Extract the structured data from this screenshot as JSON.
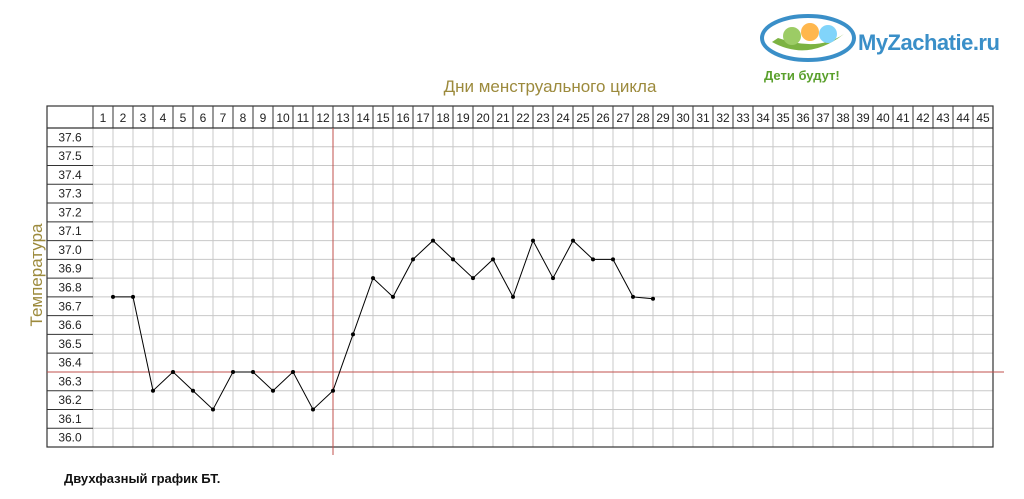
{
  "chart_data": {
    "type": "line",
    "title": "Дни менструального цикла",
    "xlabel": "Дни менструального цикла",
    "ylabel": "Температура",
    "caption": "Двухфазный график БТ.",
    "x_ticks": [
      1,
      2,
      3,
      4,
      5,
      6,
      7,
      8,
      9,
      10,
      11,
      12,
      13,
      14,
      15,
      16,
      17,
      18,
      19,
      20,
      21,
      22,
      23,
      24,
      25,
      26,
      27,
      28,
      29,
      30,
      31,
      32,
      33,
      34,
      35,
      36,
      37,
      38,
      39,
      40,
      41,
      42,
      43,
      44,
      45
    ],
    "y_ticks": [
      "37.6",
      "37.5",
      "37.4",
      "37.3",
      "37.2",
      "37.1",
      "37.0",
      "36.9",
      "36.8",
      "36.7",
      "36.6",
      "36.5",
      "36.4",
      "36.3",
      "36.2",
      "36.1",
      "36.0"
    ],
    "ylim": [
      36.0,
      37.6
    ],
    "xlim": [
      1,
      45
    ],
    "grid": true,
    "series": [
      {
        "x": [
          1,
          2,
          3,
          4,
          5,
          6,
          7,
          8,
          9,
          10,
          11,
          12,
          13,
          14,
          15,
          16,
          17,
          18,
          19,
          20,
          21,
          22,
          23,
          24,
          25,
          26,
          27,
          28
        ],
        "values": [
          36.75,
          36.75,
          36.25,
          36.35,
          36.25,
          36.15,
          36.35,
          36.35,
          36.25,
          36.35,
          36.15,
          36.25,
          36.55,
          36.85,
          36.75,
          36.95,
          37.05,
          36.95,
          36.85,
          36.95,
          36.75,
          37.05,
          36.85,
          37.05,
          36.95,
          36.95,
          36.75,
          36.74
        ],
        "color": "#000000"
      }
    ],
    "reference_lines": {
      "horizontal_value": 36.35,
      "vertical_after_day": 12,
      "color": "#c0504d"
    }
  },
  "logo": {
    "text": "MyZachatie.ru",
    "slogan": "Дети будут!",
    "color": "#3a8fc8",
    "slogan_color": "#5aa02c"
  }
}
